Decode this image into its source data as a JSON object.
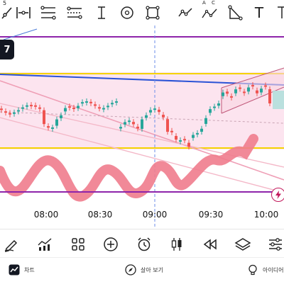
{
  "toolbar": {
    "tools": [
      {
        "icon": "ray-line-icon"
      },
      {
        "icon": "horizontal-range-icon"
      },
      {
        "icon": "fib-levels-icon"
      },
      {
        "icon": "price-range-icon"
      },
      {
        "icon": "vertical-text-cursor-icon"
      },
      {
        "icon": "circle-icon"
      },
      {
        "icon": "rectangle-icon"
      },
      {
        "icon": "polyline-icon"
      },
      {
        "icon": "abcd-pattern-icon",
        "label": "A C"
      },
      {
        "icon": "triangle-icon"
      },
      {
        "icon": "text-icon",
        "label": "T"
      },
      {
        "icon": "more-icon"
      }
    ],
    "partial_label": "5"
  },
  "chart": {
    "time_labels": [
      "08:00",
      "08:30",
      "09:00",
      "09:30",
      "10:00"
    ],
    "brand_badge": "7",
    "alert_icon": "alert-bolt-icon"
  },
  "bottom_toolbar": {
    "tools": [
      {
        "icon": "pen-icon"
      },
      {
        "icon": "indicators-icon"
      },
      {
        "icon": "grid-icon"
      },
      {
        "icon": "add-icon"
      },
      {
        "icon": "alarm-icon"
      },
      {
        "icon": "candles-icon"
      },
      {
        "icon": "rewind-icon"
      },
      {
        "icon": "layers-icon"
      },
      {
        "icon": "settings-sliders-icon"
      }
    ]
  },
  "nav": {
    "items": [
      {
        "icon": "chart-icon",
        "label": "차트"
      },
      {
        "icon": "explore-icon",
        "label": "살아 보기"
      },
      {
        "icon": "ideas-icon",
        "label": "아이디어"
      }
    ]
  }
}
